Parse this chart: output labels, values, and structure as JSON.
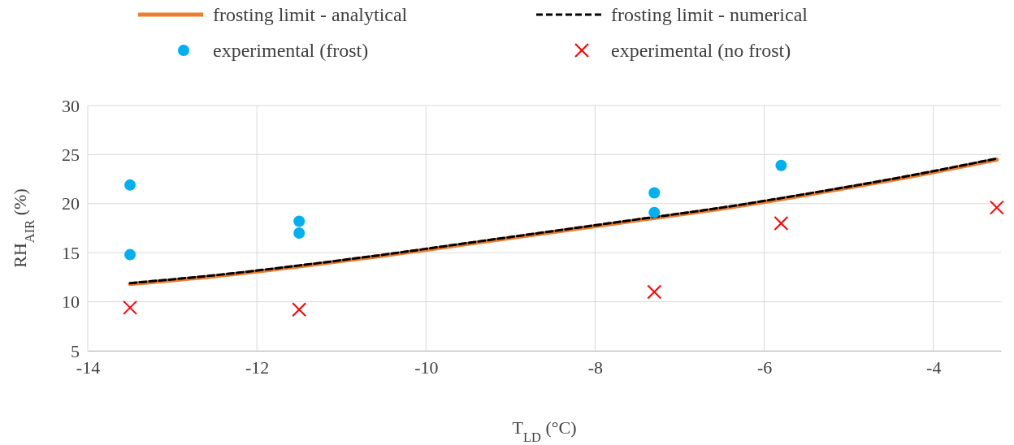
{
  "chart_data": {
    "type": "scatter",
    "xlabel": "T$_{LD}$ (°C)",
    "ylabel": "RH$_{AIR}$ (%)",
    "xlim": [
      -14,
      -3.2
    ],
    "xticks": [
      -14,
      -12,
      -10,
      -8,
      -6,
      -4
    ],
    "ylim": [
      5,
      30
    ],
    "yticks": [
      5,
      10,
      15,
      20,
      25,
      30
    ],
    "grid": true,
    "legend": "top",
    "series": [
      {
        "name": "frosting limit - analytical",
        "type": "line",
        "color": "#ed7d31",
        "line_style": "solid",
        "marker": "none",
        "x": [
          -13.5,
          -12.5,
          -11.5,
          -10.5,
          -9.5,
          -8.5,
          -7.5,
          -6.5,
          -5.5,
          -4.5,
          -3.25
        ],
        "values": [
          11.8,
          12.6,
          13.6,
          14.7,
          15.9,
          17.1,
          18.3,
          19.5,
          20.9,
          22.4,
          24.5
        ]
      },
      {
        "name": "frosting limit - numerical",
        "type": "line",
        "color": "#000000",
        "line_style": "dashed",
        "marker": "none",
        "x": [
          -13.5,
          -12.5,
          -11.5,
          -10.5,
          -9.5,
          -8.5,
          -7.5,
          -6.5,
          -5.5,
          -4.5,
          -3.25
        ],
        "values": [
          11.9,
          12.7,
          13.7,
          14.8,
          16.0,
          17.2,
          18.4,
          19.6,
          21.0,
          22.5,
          24.6
        ]
      },
      {
        "name": "experimental (frost)",
        "color": "#00b0f0",
        "marker": "circle",
        "x": [
          -13.5,
          -13.5,
          -11.5,
          -11.5,
          -7.3,
          -7.3,
          -5.8
        ],
        "values": [
          21.9,
          14.8,
          18.2,
          17.0,
          21.1,
          19.1,
          23.9
        ]
      },
      {
        "name": "experimental (no frost)",
        "color": "#ff0000",
        "marker": "cross",
        "x": [
          -13.5,
          -11.5,
          -7.3,
          -5.8,
          -3.25
        ],
        "values": [
          9.4,
          9.2,
          11.0,
          18.0,
          19.6
        ]
      }
    ]
  }
}
